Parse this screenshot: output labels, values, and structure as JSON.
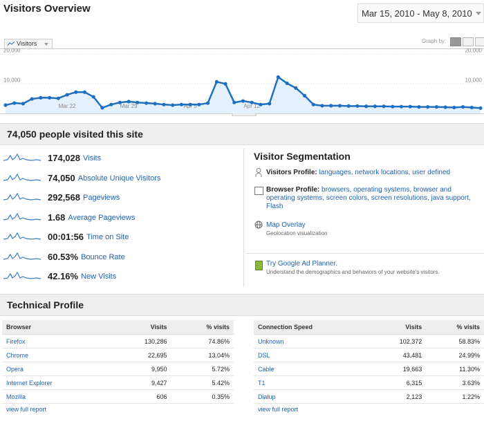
{
  "header": {
    "title": "Visitors Overview",
    "date_range": "Mar 15, 2010 - May 8, 2010"
  },
  "graph": {
    "type": "line",
    "tab_label": "Visitors",
    "graph_by_label": "Graph by:",
    "ylim": [
      0,
      22000
    ],
    "yticks": [
      {
        "value": 10000,
        "label": "10,000"
      },
      {
        "value": 20000,
        "label": "20,000"
      }
    ],
    "categories": [
      null,
      null,
      null,
      null,
      null,
      null,
      null,
      "Mar 22",
      null,
      null,
      null,
      null,
      null,
      null,
      "Mar 29",
      null,
      null,
      null,
      null,
      null,
      null,
      "Apr 5",
      null,
      null,
      null,
      null,
      null,
      null,
      "Apr 12",
      null,
      null,
      null,
      null,
      null,
      null,
      null,
      null,
      null,
      null,
      null,
      null,
      null,
      null,
      null,
      null,
      null,
      null,
      null,
      null,
      null,
      null,
      null,
      null,
      null,
      null
    ],
    "values": [
      2800,
      3500,
      3300,
      4900,
      5300,
      5300,
      5100,
      6300,
      7200,
      7200,
      5600,
      1900,
      3000,
      3700,
      4000,
      3700,
      3500,
      3300,
      3000,
      2800,
      3000,
      3000,
      3000,
      3500,
      10700,
      10000,
      3700,
      4200,
      3700,
      3000,
      3300,
      12300,
      10200,
      8600,
      6000,
      3000,
      2600,
      2600,
      2600,
      2500,
      2500,
      2400,
      2400,
      2400,
      2300,
      2300,
      2300,
      2200,
      2200,
      2200,
      2100,
      2000,
      2200,
      2000,
      1800
    ]
  },
  "summary": {
    "title": "74,050 people visited this site",
    "metrics": [
      {
        "value": "174,028",
        "label": "Visits"
      },
      {
        "value": "74,050",
        "label": "Absolute Unique Visitors"
      },
      {
        "value": "292,568",
        "label": "Pageviews"
      },
      {
        "value": "1.68",
        "label": "Average Pageviews"
      },
      {
        "value": "00:01:56",
        "label": "Time on Site"
      },
      {
        "value": "60.53%",
        "label": "Bounce Rate"
      },
      {
        "value": "42.16%",
        "label": "New Visits"
      }
    ]
  },
  "segmentation": {
    "title": "Visitor Segmentation",
    "visitors_profile": {
      "label": "Visitors Profile:",
      "links": [
        "languages,",
        "network locations,",
        "user defined"
      ]
    },
    "browser_profile": {
      "label": "Browser Profile:",
      "links": [
        "browsers,",
        "operating systems,",
        "browser and operating systems,",
        "screen colors,",
        "screen resolutions,",
        "java support,",
        "Flash"
      ]
    },
    "map_overlay": {
      "title": "Map Overlay",
      "description": "Geolocation visualization"
    },
    "ad_planner": {
      "title": "Try Google Ad Planner.",
      "description": "Understand the demographics and behaviors of your website's visitors."
    }
  },
  "technical": {
    "title": "Technical Profile",
    "browser_table": {
      "columns": [
        "Browser",
        "Visits",
        "% visits"
      ],
      "rows": [
        [
          "Firefox",
          "130,286",
          "74.86%"
        ],
        [
          "Chrome",
          "22,695",
          "13.04%"
        ],
        [
          "Opera",
          "9,950",
          "5.72%"
        ],
        [
          "Internet Explorer",
          "9,427",
          "5.42%"
        ],
        [
          "Mozilla",
          "606",
          "0.35%"
        ]
      ],
      "link": "view full report"
    },
    "connection_table": {
      "columns": [
        "Connection Speed",
        "Visits",
        "% visits"
      ],
      "rows": [
        [
          "Unknown",
          "102,372",
          "58.83%"
        ],
        [
          "DSL",
          "43,481",
          "24.99%"
        ],
        [
          "Cable",
          "19,663",
          "11.30%"
        ],
        [
          "T1",
          "6,315",
          "3.63%"
        ],
        [
          "Dialup",
          "2,123",
          "1.22%"
        ]
      ],
      "link": "view full report"
    }
  }
}
